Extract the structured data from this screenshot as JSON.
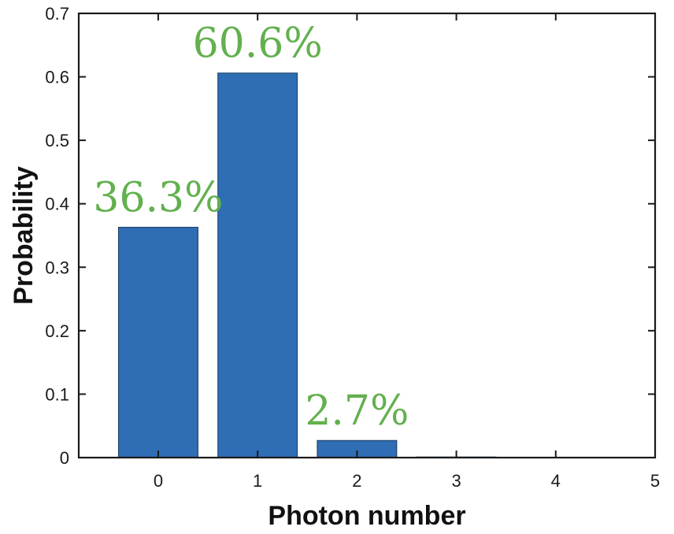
{
  "colors": {
    "bar": "#2f6db4",
    "bar_edge": "#1b3c63",
    "label": "#62b04e",
    "axis": "#1a1a1a"
  },
  "chart_data": {
    "type": "bar",
    "categories": [
      "0",
      "1",
      "2",
      "3",
      "4"
    ],
    "values": [
      0.363,
      0.606,
      0.027,
      0.001,
      0.0
    ],
    "data_labels": [
      "36.3%",
      "60.6%",
      "2.7%",
      "",
      ""
    ],
    "xlabel": "Photon number",
    "ylabel": "Probability",
    "xlim": [
      -0.8,
      5
    ],
    "ylim": [
      0,
      0.7
    ],
    "xticks": [
      "0",
      "1",
      "2",
      "3",
      "4",
      "5"
    ],
    "yticks": [
      "0",
      "0.1",
      "0.2",
      "0.3",
      "0.4",
      "0.5",
      "0.6",
      "0.7"
    ],
    "grid": false,
    "legend": "none"
  }
}
